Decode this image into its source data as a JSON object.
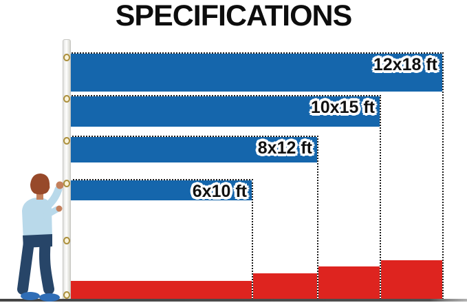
{
  "title": "SPECIFICATIONS",
  "diagram": {
    "unit": "ft",
    "flags": [
      {
        "label": "12x18 ft",
        "height_ft": 12,
        "width_ft": 18
      },
      {
        "label": "10x15 ft",
        "height_ft": 10,
        "width_ft": 15
      },
      {
        "label": "8x12 ft",
        "height_ft": 8,
        "width_ft": 12
      },
      {
        "label": "6x10 ft",
        "height_ft": 6,
        "width_ft": 10
      }
    ]
  },
  "colors": {
    "flag_blue": "#1566ac",
    "flag_red": "#de241f",
    "title_text": "#0d0d0d",
    "label_text": "#111111",
    "label_outline": "#ffffff"
  }
}
